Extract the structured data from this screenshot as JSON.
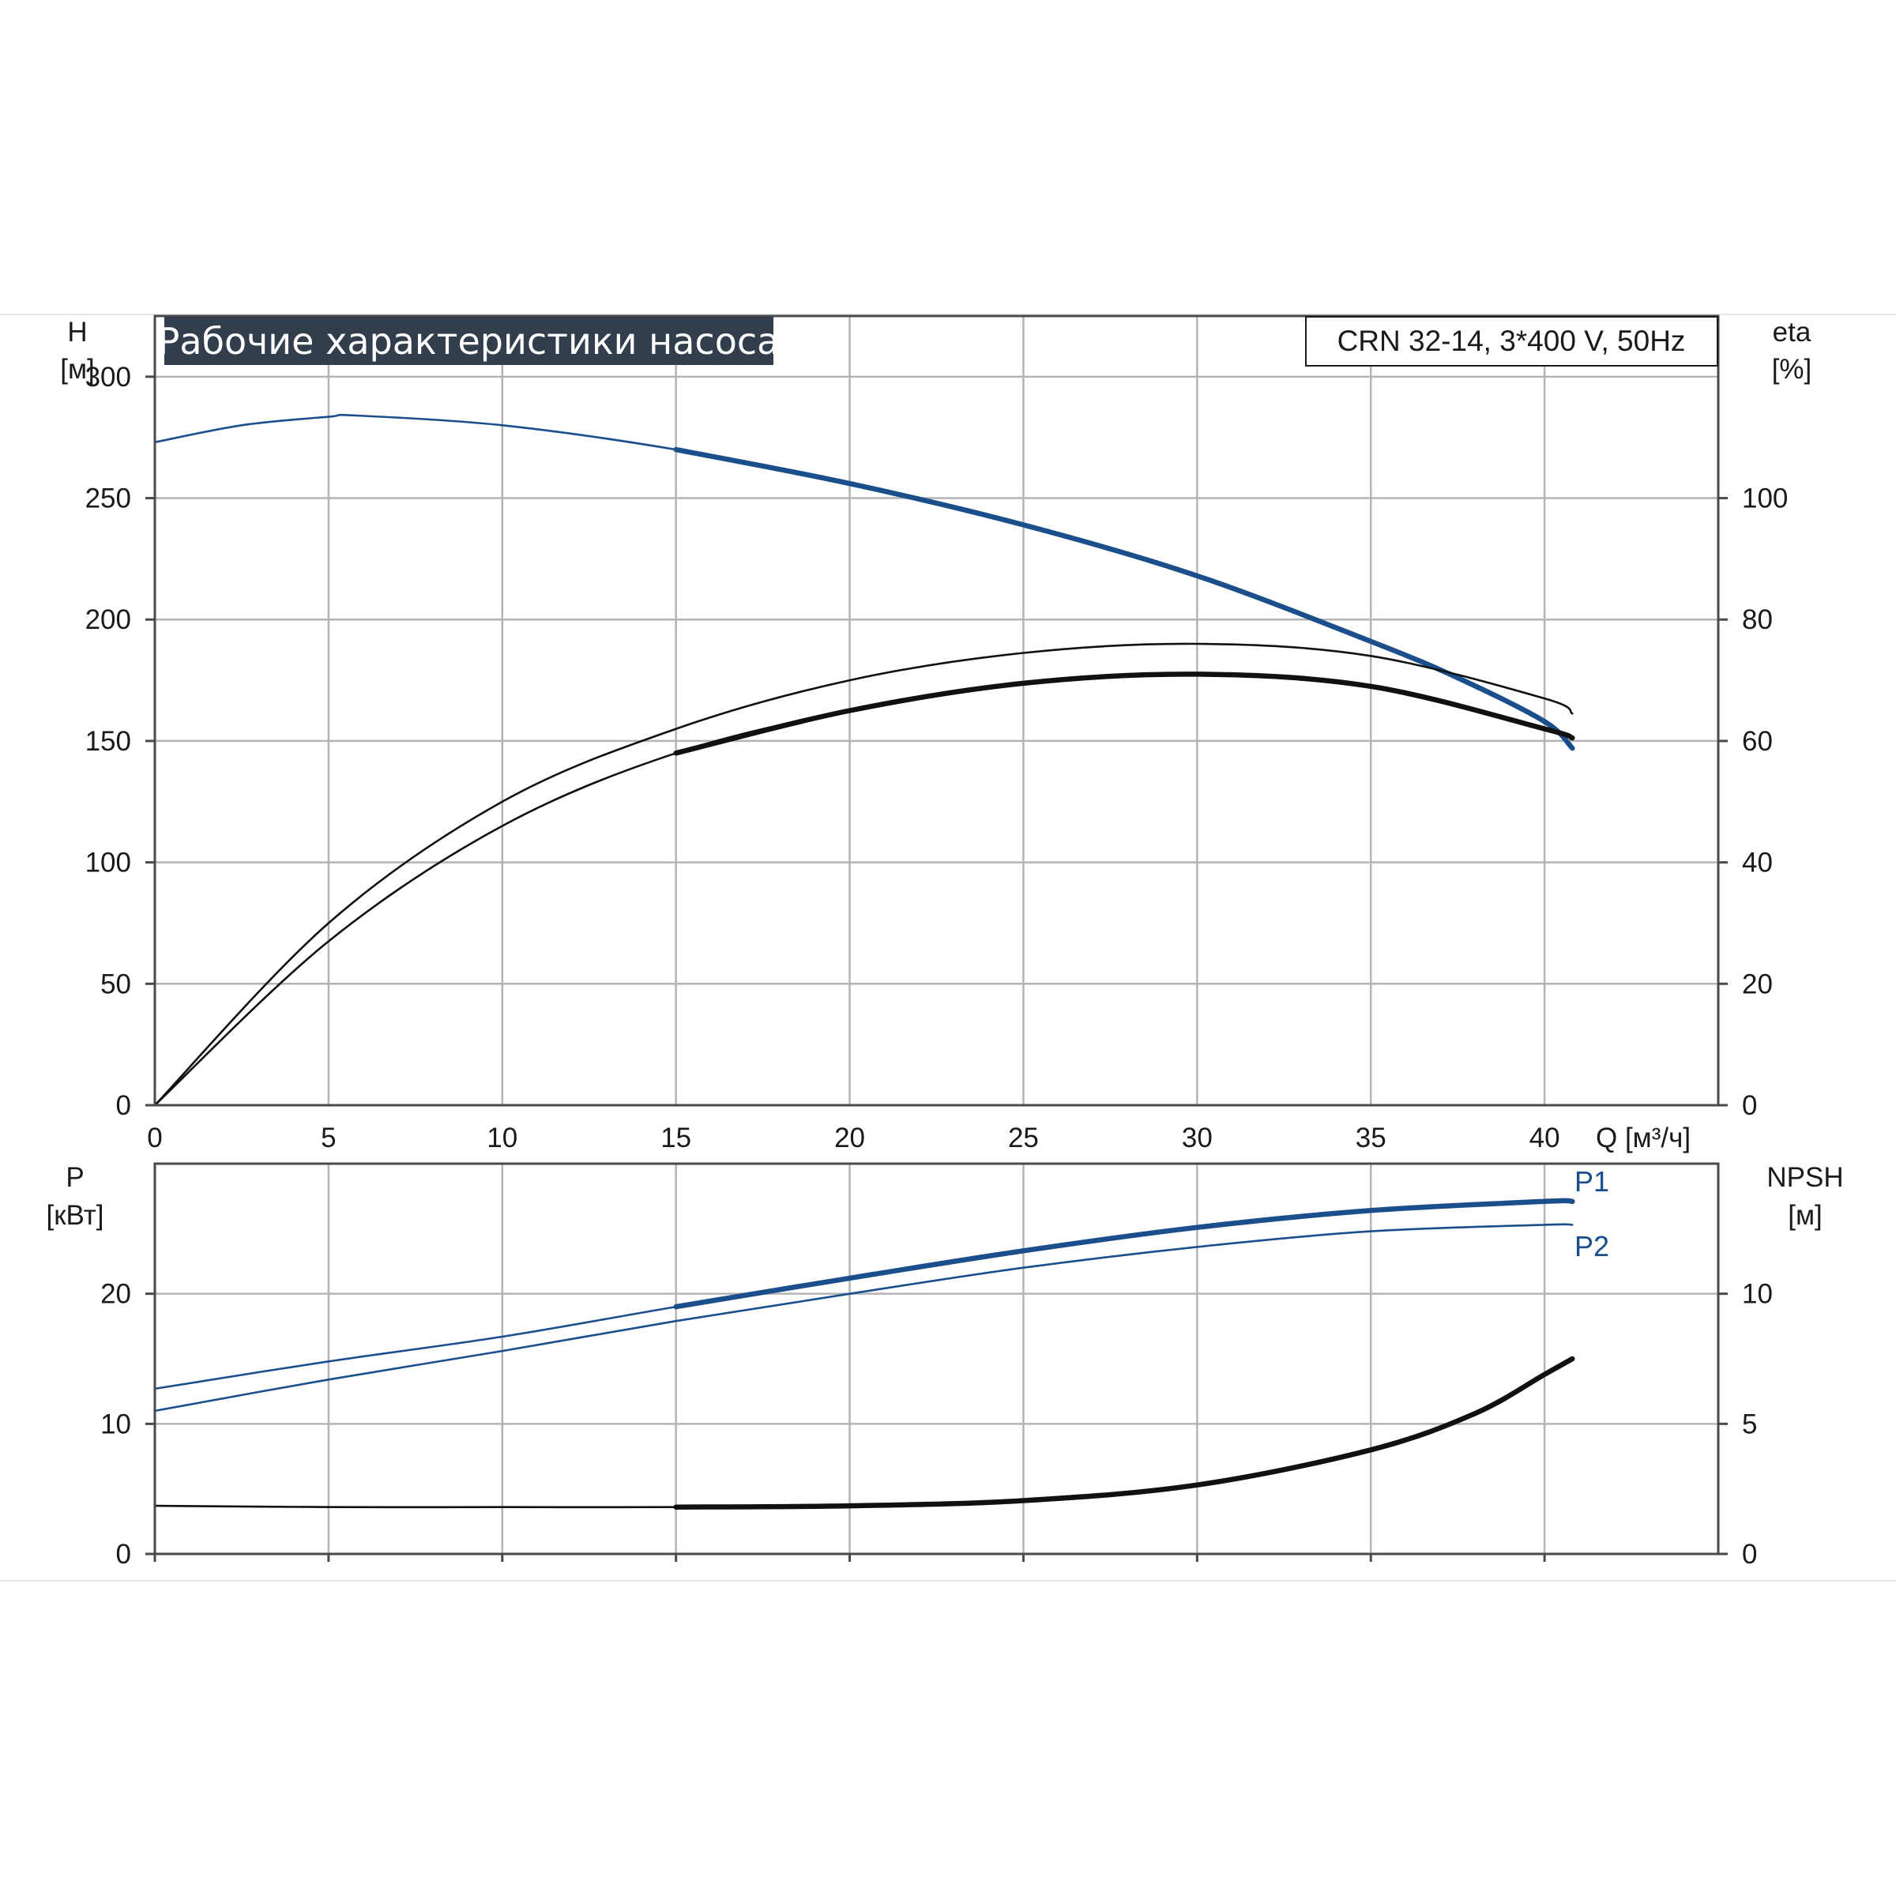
{
  "colors": {
    "blue": "#1b4f8c",
    "black": "#111111",
    "grid": "#b4b4b4",
    "frame": "#4a4a4a",
    "title_bg": "#333e4c"
  },
  "header": {
    "title": "Рабочие характеристики насоса",
    "model": "CRN 32-14, 3*400 V, 50Hz"
  },
  "chart_data": [
    {
      "type": "line",
      "panel": "top",
      "x_label": "Q [м³/ч]",
      "x_ticks": [
        "0",
        "5",
        "10",
        "15",
        "20",
        "25",
        "30",
        "35",
        "40"
      ],
      "xlim": [
        0,
        45
      ],
      "left_axis": {
        "label_line1": "H",
        "label_line2": "[м]",
        "ticks": [
          "0",
          "50",
          "100",
          "150",
          "200",
          "250",
          "300"
        ],
        "ylim": [
          0,
          325
        ]
      },
      "right_axis": {
        "label_line1": "eta",
        "label_line2": "[%]",
        "ticks": [
          "0",
          "20",
          "40",
          "60",
          "80",
          "100"
        ],
        "ylim": [
          0,
          130
        ]
      },
      "grid": true,
      "series": [
        {
          "id": "H",
          "axis": "left",
          "color": "blue",
          "bold_from": 15,
          "x": [
            0,
            2.5,
            5,
            5.8,
            10,
            15,
            20,
            25,
            30,
            35,
            37.5,
            40,
            40.8
          ],
          "y": [
            273,
            280,
            283.5,
            284,
            280,
            270,
            256,
            239,
            218,
            191,
            176,
            158,
            147
          ]
        },
        {
          "id": "eta_upper",
          "axis": "right",
          "color": "black",
          "bold_from": null,
          "x": [
            0,
            5,
            10,
            15,
            20,
            25,
            30,
            35,
            40,
            40.8
          ],
          "y": [
            0,
            30,
            50,
            62,
            70,
            74.5,
            76,
            74,
            67,
            64.5
          ]
        },
        {
          "id": "eta_lower",
          "axis": "right",
          "color": "black",
          "bold_from": 15,
          "x": [
            0,
            5,
            10,
            15,
            20,
            25,
            30,
            35,
            40,
            40.8
          ],
          "y": [
            0,
            27,
            46,
            58,
            65,
            69.5,
            71,
            69,
            62,
            60.5
          ]
        }
      ]
    },
    {
      "type": "line",
      "panel": "bottom",
      "x_ticks": [
        "0",
        "5",
        "10",
        "15",
        "20",
        "25",
        "30",
        "35",
        "40"
      ],
      "xlim": [
        0,
        45
      ],
      "left_axis": {
        "label_line1": "P",
        "label_line2": "[кВт]",
        "ticks": [
          "0",
          "10",
          "20"
        ],
        "ylim": [
          0,
          30
        ]
      },
      "right_axis": {
        "label_line1": "NPSH",
        "label_line2": "[м]",
        "ticks": [
          "0",
          "5",
          "10"
        ],
        "ylim": [
          0,
          15
        ]
      },
      "grid": true,
      "series": [
        {
          "id": "P1",
          "name": "P1",
          "axis": "left",
          "color": "blue",
          "bold_from": 15,
          "x": [
            0,
            5,
            10,
            15,
            20,
            25,
            30,
            35,
            40,
            40.8
          ],
          "y": [
            12.7,
            14.8,
            16.7,
            19.0,
            21.2,
            23.3,
            25.1,
            26.4,
            27.1,
            27.1
          ]
        },
        {
          "id": "P2",
          "name": "P2",
          "axis": "left",
          "color": "blue",
          "bold_from": null,
          "x": [
            0,
            5,
            10,
            15,
            20,
            25,
            30,
            35,
            40,
            40.8
          ],
          "y": [
            11.0,
            13.4,
            15.6,
            17.9,
            20.0,
            22.0,
            23.6,
            24.8,
            25.3,
            25.3
          ]
        },
        {
          "id": "NPSH",
          "axis": "right",
          "color": "black",
          "bold_from": 15,
          "x": [
            0,
            5,
            10,
            15,
            20,
            25,
            30,
            35,
            38,
            40,
            40.8
          ],
          "y": [
            1.85,
            1.8,
            1.8,
            1.8,
            1.85,
            2.05,
            2.65,
            4.0,
            5.4,
            6.9,
            7.5
          ]
        }
      ]
    }
  ]
}
